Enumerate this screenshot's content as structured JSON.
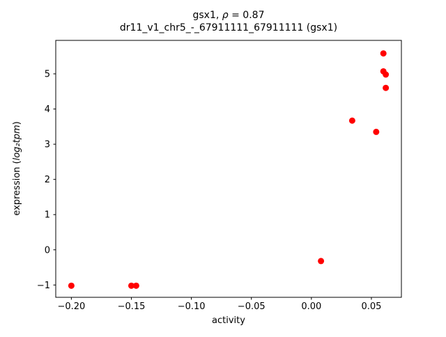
{
  "chart_data": {
    "type": "scatter",
    "title_line1_parts": {
      "prefix": "gsx1, ",
      "math": "ρ",
      "suffix": " = 0.87"
    },
    "title_line2": "dr11_v1_chr5_-_67911111_67911111 (gsx1)",
    "xlabel": "activity",
    "ylabel_parts": {
      "prefix": "expression (",
      "math": "log₂tpm",
      "suffix": ")"
    },
    "marker_color": "#ff0000",
    "marker_size_px": 4.5,
    "grid": false,
    "legend": "none",
    "xlim": [
      -0.213,
      0.075
    ],
    "ylim": [
      -1.35,
      5.95
    ],
    "xticks": [
      {
        "value": -0.2,
        "label": "−0.20"
      },
      {
        "value": -0.15,
        "label": "−0.15"
      },
      {
        "value": -0.1,
        "label": "−0.10"
      },
      {
        "value": -0.05,
        "label": "−0.05"
      },
      {
        "value": 0.0,
        "label": "0.00"
      },
      {
        "value": 0.05,
        "label": "0.05"
      }
    ],
    "yticks": [
      {
        "value": -1,
        "label": "−1"
      },
      {
        "value": 0,
        "label": "0"
      },
      {
        "value": 1,
        "label": "1"
      },
      {
        "value": 2,
        "label": "2"
      },
      {
        "value": 3,
        "label": "3"
      },
      {
        "value": 4,
        "label": "4"
      },
      {
        "value": 5,
        "label": "5"
      }
    ],
    "points": [
      {
        "x": -0.2,
        "y": -1.02
      },
      {
        "x": -0.15,
        "y": -1.02
      },
      {
        "x": -0.146,
        "y": -1.02
      },
      {
        "x": 0.008,
        "y": -0.32
      },
      {
        "x": 0.034,
        "y": 3.67
      },
      {
        "x": 0.054,
        "y": 3.35
      },
      {
        "x": 0.06,
        "y": 5.58
      },
      {
        "x": 0.06,
        "y": 5.07
      },
      {
        "x": 0.062,
        "y": 4.98
      },
      {
        "x": 0.062,
        "y": 4.6
      }
    ]
  }
}
